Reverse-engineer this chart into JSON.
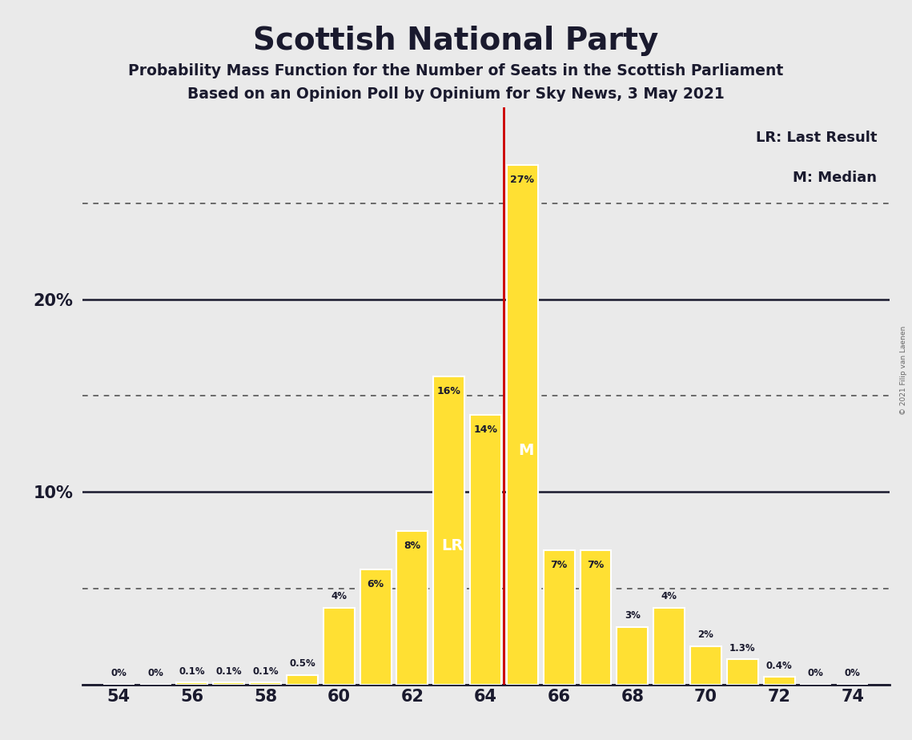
{
  "title": "Scottish National Party",
  "subtitle1": "Probability Mass Function for the Number of Seats in the Scottish Parliament",
  "subtitle2": "Based on an Opinion Poll by Opinium for Sky News, 3 May 2021",
  "copyright": "© 2021 Filip van Laenen",
  "seats": [
    54,
    55,
    56,
    57,
    58,
    59,
    60,
    61,
    62,
    63,
    64,
    65,
    66,
    67,
    68,
    69,
    70,
    71,
    72,
    73,
    74
  ],
  "probabilities": [
    0.0,
    0.0,
    0.1,
    0.1,
    0.1,
    0.5,
    4.0,
    6.0,
    8.0,
    16.0,
    14.0,
    27.0,
    7.0,
    7.0,
    3.0,
    4.0,
    2.0,
    1.3,
    0.4,
    0.0,
    0.0
  ],
  "labels": [
    "0%",
    "0%",
    "0.1%",
    "0.1%",
    "0.1%",
    "0.5%",
    "4%",
    "6%",
    "8%",
    "16%",
    "14%",
    "27%",
    "7%",
    "7%",
    "3%",
    "4%",
    "2%",
    "1.3%",
    "0.4%",
    "0%",
    "0%"
  ],
  "bar_color": "#FFE033",
  "bar_edge_color": "#FFFFFF",
  "last_result_seat": 63,
  "median_seat": 65,
  "red_line_x": 64.5,
  "lr_label": "LR",
  "median_label": "M",
  "label_color_inside": "#FFFFFF",
  "label_color_outside": "#1A1A2E",
  "red_line_color": "#CC0000",
  "background_color": "#EAEAEA",
  "title_color": "#1A1A2E",
  "subtitle_color": "#1A1A2E",
  "axis_color": "#1A1A2E",
  "solid_line_color": "#1A1A2E",
  "dotted_line_color": "#555555",
  "legend_lr": "LR: Last Result",
  "legend_m": "M: Median",
  "xlim": [
    53,
    75
  ],
  "ylim": [
    0,
    30
  ],
  "xticks": [
    54,
    56,
    58,
    60,
    62,
    64,
    66,
    68,
    70,
    72,
    74
  ],
  "yticks": [
    0,
    10,
    20
  ],
  "dotted_yticks": [
    5,
    15,
    25
  ],
  "bar_width": 0.85,
  "inside_label_threshold": 5.0
}
